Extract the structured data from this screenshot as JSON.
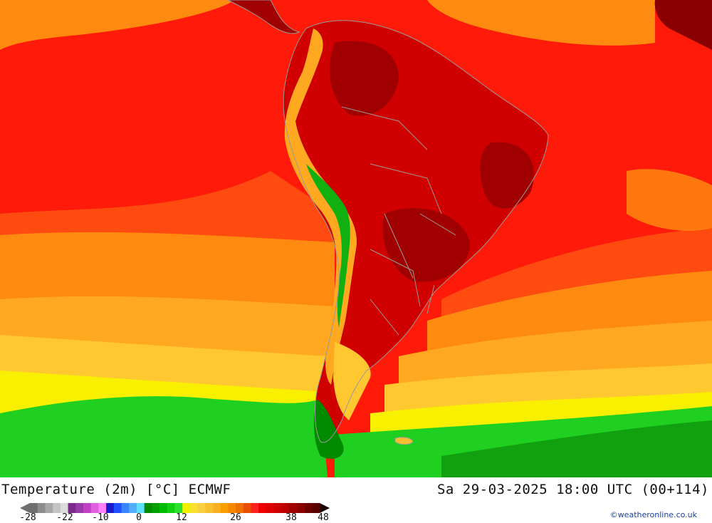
{
  "title": "Temperature (2m) [°C] ECMWF",
  "valid_time": "Sa 29-03-2025 18:00 UTC (00+114)",
  "credit": "©weatheronline.co.uk",
  "legend": {
    "unit": "°C",
    "tick_labels": [
      "-28",
      "-22",
      "-10",
      "0",
      "12",
      "26",
      "38",
      "48"
    ],
    "colors": [
      "#6e6e6e",
      "#8c8c8c",
      "#a8a8a8",
      "#c4c4c4",
      "#dcdcdc",
      "#7a2a8a",
      "#9a3aa8",
      "#c040c8",
      "#e060e0",
      "#ff80ff",
      "#1a1acc",
      "#2050ff",
      "#3a84ff",
      "#50b0ff",
      "#60e0ff",
      "#008a00",
      "#00a000",
      "#00bb00",
      "#10d010",
      "#30e030",
      "#f0f000",
      "#f8e030",
      "#f8d040",
      "#f8c030",
      "#f8b020",
      "#f8a000",
      "#f88800",
      "#f07000",
      "#e85000",
      "#ff2020",
      "#ee0000",
      "#dd0000",
      "#cc0000",
      "#bb0000",
      "#a00000",
      "#8a0000",
      "#700000",
      "#5a0000"
    ]
  },
  "map": {
    "region": "South America",
    "colors": {
      "very_hot": "#8a0000",
      "hot": "#c80000",
      "warm_red": "#ff1a0a",
      "orange_red": "#ff4a10",
      "orange": "#ff8a10",
      "light_orange": "#ffa820",
      "yellow_orange": "#ffc830",
      "yellow": "#f8f000",
      "green_light": "#20d020",
      "green": "#10b010",
      "green_dark": "#009000",
      "borders": "#9a9a9a"
    }
  }
}
